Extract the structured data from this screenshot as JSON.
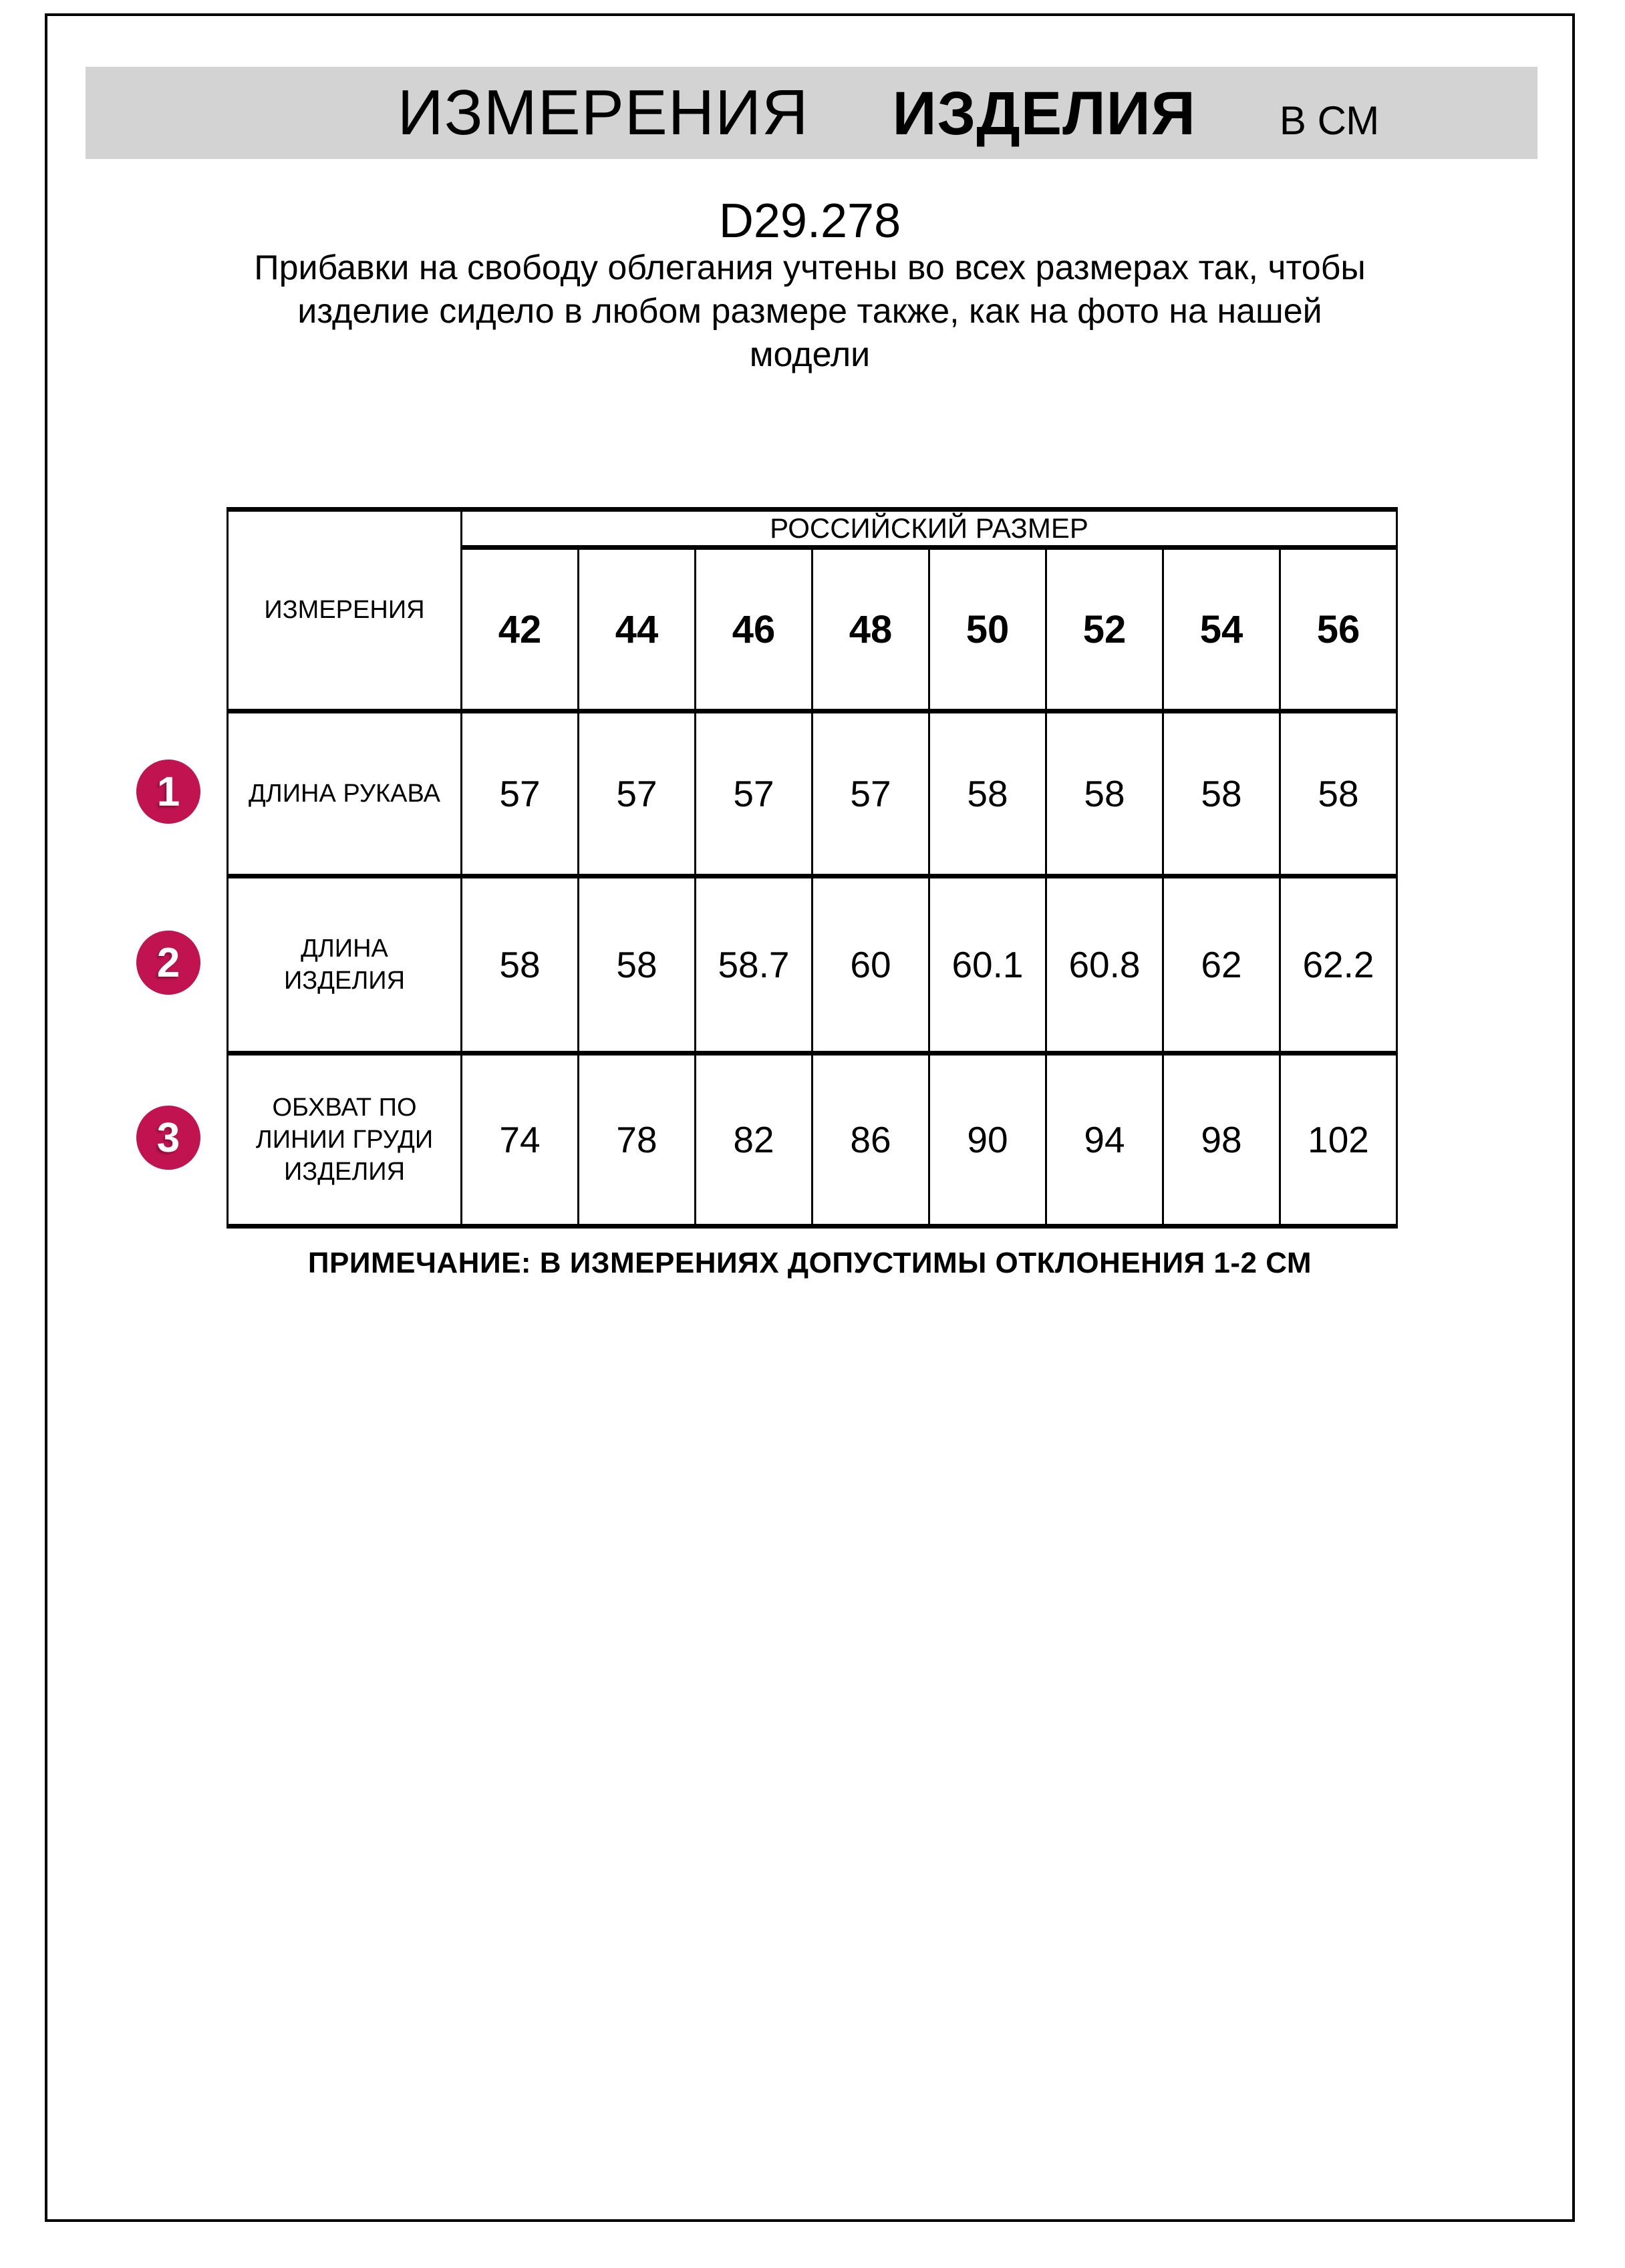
{
  "header": {
    "title_regular": "ИЗМЕРЕНИЯ",
    "title_bold": "ИЗДЕЛИЯ",
    "title_units": "В СМ"
  },
  "product_code": "D29.278",
  "intro_lines": [
    "Прибавки на свободу облегания учтены во всех размерах так, чтобы",
    "изделие сидело в любом размере также, как на фото на нашей",
    "модели"
  ],
  "table": {
    "corner_header": "ИЗМЕРЕНИЯ",
    "group_header": "РОССИЙСКИЙ РАЗМЕР",
    "sizes": [
      "42",
      "44",
      "46",
      "48",
      "50",
      "52",
      "54",
      "56"
    ],
    "rows": [
      {
        "num": "1",
        "label": "ДЛИНА РУКАВА",
        "label_lines": [
          "ДЛИНА РУКАВА"
        ],
        "values": [
          "57",
          "57",
          "57",
          "57",
          "58",
          "58",
          "58",
          "58"
        ]
      },
      {
        "num": "2",
        "label": "ДЛИНА ИЗДЕЛИЯ",
        "label_lines": [
          "ДЛИНА",
          "ИЗДЕЛИЯ"
        ],
        "values": [
          "58",
          "58",
          "58.7",
          "60",
          "60.1",
          "60.8",
          "62",
          "62.2"
        ]
      },
      {
        "num": "3",
        "label": "ОБХВАТ ПО ЛИНИИ ГРУДИ ИЗДЕЛИЯ",
        "label_lines": [
          "ОБХВАТ ПО",
          "ЛИНИИ ГРУДИ",
          "ИЗДЕЛИЯ"
        ],
        "values": [
          "74",
          "78",
          "82",
          "86",
          "90",
          "94",
          "98",
          "102"
        ]
      }
    ]
  },
  "note": "ПРИМЕЧАНИЕ: В ИЗМЕРЕНИЯХ ДОПУСТИМЫ ОТКЛОНЕНИЯ 1-2 СМ",
  "colors": {
    "badge_background": "#C11350",
    "badge_number": "#FFFFFF",
    "header_bar_background": "#D3D3D3",
    "border": "#000000"
  }
}
